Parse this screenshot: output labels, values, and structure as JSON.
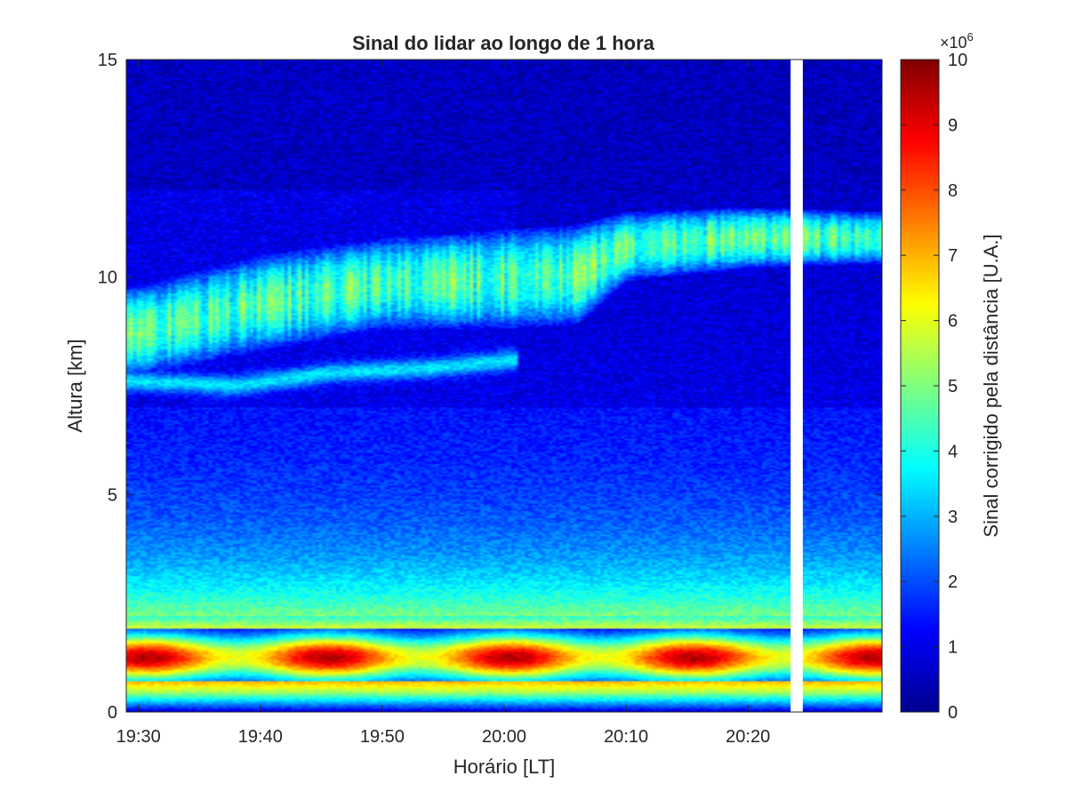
{
  "chart_data": {
    "type": "heatmap",
    "title": "Sinal do lidar ao longo de 1 hora",
    "xlabel": "Horário [LT]",
    "ylabel": "Altura [km]",
    "x_ticks": [
      "19:30",
      "19:40",
      "19:50",
      "20:00",
      "20:10",
      "20:20"
    ],
    "x_tick_minutes": [
      0,
      10,
      20,
      30,
      40,
      50
    ],
    "x_range_minutes": [
      -1,
      61
    ],
    "y_ticks": [
      0,
      5,
      10,
      15
    ],
    "ylim": [
      0,
      15
    ],
    "colorbar": {
      "label": "Sinal corrigido pela distância [U.A.]",
      "multiplier": "×10",
      "exponent": "6",
      "ticks": [
        0,
        1,
        2,
        3,
        4,
        5,
        6,
        7,
        8,
        9,
        10
      ],
      "range": [
        0,
        10
      ],
      "colormap": "jet"
    },
    "gap_minutes": [
      53.5,
      54.5
    ],
    "features": {
      "surface_layer": {
        "height_km": [
          0.4,
          0.65
        ],
        "value": 5.0
      },
      "boundary_layer_peak": {
        "height_km": [
          0.7,
          1.9
        ],
        "center_km": 1.25,
        "value_max": 9.5
      },
      "boundary_layer_top_km": 2.2,
      "free_troposphere": {
        "height_km": [
          2.2,
          5.0
        ],
        "value": [
          3.5,
          1.5
        ]
      },
      "upper_cloud": {
        "value_max": 4.5,
        "minutes": [
          0,
          10,
          20,
          30,
          36,
          40,
          50,
          60
        ],
        "base_km": [
          8.0,
          8.6,
          9.1,
          9.1,
          9.2,
          10.2,
          10.5,
          10.6
        ],
        "top_km": [
          9.5,
          10.2,
          10.6,
          10.8,
          10.9,
          11.2,
          11.3,
          11.2
        ]
      },
      "lower_cloud": {
        "value_max": 3.5,
        "minutes": [
          0,
          8,
          16,
          24,
          31
        ],
        "height_km": [
          7.6,
          7.5,
          7.8,
          7.9,
          8.1
        ]
      }
    }
  }
}
